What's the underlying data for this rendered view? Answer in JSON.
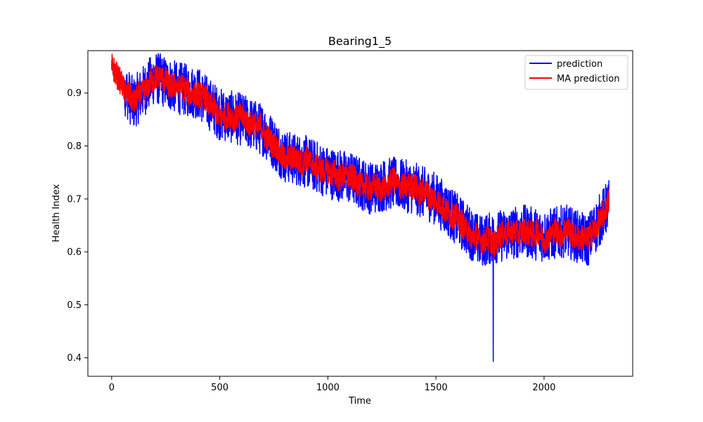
{
  "chart_data": {
    "type": "line",
    "title": "Bearing1_5",
    "xlabel": "Time",
    "ylabel": "Health Index",
    "xlim": [
      -110,
      2410
    ],
    "ylim": [
      0.365,
      0.98
    ],
    "xticks": [
      0,
      500,
      1000,
      1500,
      2000
    ],
    "yticks": [
      0.4,
      0.5,
      0.6,
      0.7,
      0.8,
      0.9
    ],
    "ytick_labels": [
      "0.4",
      "0.5",
      "0.6",
      "0.7",
      "0.8",
      "0.9"
    ],
    "grid": false,
    "legend_position": "top-right",
    "colors": {
      "prediction": "#0000ff",
      "ma_prediction": "#ff0000"
    },
    "series": [
      {
        "name": "prediction",
        "color": "#0000ff",
        "x": [
          0,
          100,
          200,
          300,
          400,
          500,
          600,
          700,
          800,
          900,
          1000,
          1100,
          1200,
          1300,
          1400,
          1500,
          1600,
          1700,
          1800,
          1900,
          2000,
          2100,
          2200,
          2300
        ],
        "y": [
          0.95,
          0.88,
          0.93,
          0.91,
          0.9,
          0.86,
          0.85,
          0.83,
          0.78,
          0.77,
          0.75,
          0.74,
          0.72,
          0.73,
          0.72,
          0.7,
          0.66,
          0.62,
          0.63,
          0.64,
          0.63,
          0.64,
          0.62,
          0.69
        ],
        "noise_amplitude": 0.05,
        "y_min": 0.393,
        "y_min_x": 1765
      },
      {
        "name": "MA prediction",
        "color": "#ff0000",
        "x": [
          0,
          100,
          200,
          300,
          400,
          500,
          600,
          700,
          800,
          900,
          1000,
          1100,
          1200,
          1300,
          1400,
          1500,
          1600,
          1700,
          1800,
          1900,
          2000,
          2100,
          2200,
          2300
        ],
        "y": [
          0.95,
          0.88,
          0.93,
          0.91,
          0.9,
          0.86,
          0.85,
          0.83,
          0.78,
          0.77,
          0.75,
          0.74,
          0.72,
          0.73,
          0.72,
          0.7,
          0.66,
          0.62,
          0.63,
          0.64,
          0.63,
          0.64,
          0.62,
          0.69
        ],
        "noise_amplitude": 0.025
      }
    ]
  }
}
